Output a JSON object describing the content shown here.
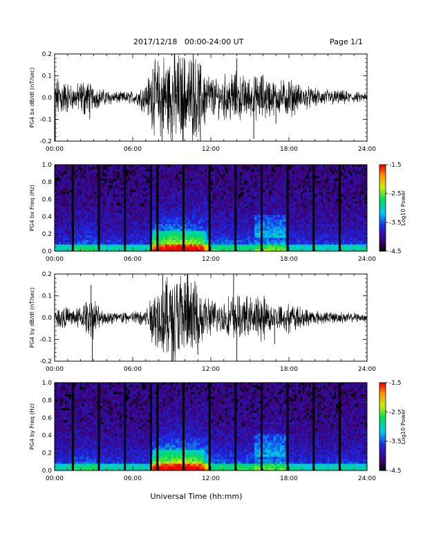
{
  "header": {
    "title": "2017/12/18   00:00-24:00 UT",
    "page": "Page 1/1"
  },
  "xlabel": "Universal Time (hh:mm)",
  "chart_data": [
    {
      "type": "line",
      "series": [
        {
          "name": "PG4 bx dB/dt"
        }
      ],
      "ylabel": "PG4 bx dB/dt (nT/sec)",
      "xlim_hours": [
        0,
        24
      ],
      "ylim": [
        -0.2,
        0.2
      ],
      "xticks": [
        "00:00",
        "06:00",
        "12:00",
        "18:00",
        "24:00"
      ],
      "yticks": [
        "-0.2",
        "-0.1",
        "0.0",
        "0.1",
        "0.2"
      ],
      "activity_envelope": {
        "hours": [
          0,
          0.3,
          1.5,
          2.3,
          2.8,
          3.5,
          5,
          6.2,
          7,
          7.6,
          8.5,
          9.3,
          10,
          10.8,
          11.5,
          12.3,
          13,
          13.7,
          14.3,
          15.2,
          16,
          17,
          18,
          18.7,
          20,
          21.5,
          23,
          24
        ],
        "amplitude": [
          0.06,
          0.1,
          0.05,
          0.09,
          0.06,
          0.04,
          0.025,
          0.03,
          0.07,
          0.15,
          0.2,
          0.2,
          0.2,
          0.18,
          0.14,
          0.08,
          0.1,
          0.12,
          0.1,
          0.09,
          0.11,
          0.07,
          0.09,
          0.06,
          0.04,
          0.035,
          0.025,
          0.02
        ]
      },
      "spikes": [
        {
          "hour": 0.05,
          "value": -0.2
        },
        {
          "hour": 2.7,
          "value": -0.1
        },
        {
          "hour": 7.55,
          "value": 0.13
        },
        {
          "hour": 8.25,
          "value": -0.2
        },
        {
          "hour": 9.2,
          "value": 0.2
        },
        {
          "hour": 9.85,
          "value": -0.2
        },
        {
          "hour": 10.65,
          "value": 0.2
        },
        {
          "hour": 11.2,
          "value": -0.2
        },
        {
          "hour": 14.0,
          "value": 0.18
        },
        {
          "hour": 15.3,
          "value": -0.19
        },
        {
          "hour": 17.0,
          "value": -0.12
        }
      ]
    },
    {
      "type": "heatmap",
      "ylabel": "PG4 bx Freq (Hz)",
      "colorbar_label": "Log10 Power",
      "xlim_hours": [
        0,
        24
      ],
      "ylim": [
        0,
        1
      ],
      "yticks": [
        "0.0",
        "0.2",
        "0.4",
        "0.6",
        "0.8",
        "1.0"
      ],
      "xticks": [
        "00:00",
        "06:00",
        "12:00",
        "18:00",
        "24:00"
      ],
      "color_range": [
        -4.5,
        -1.5
      ],
      "colorbar_ticks": [
        "-1.5",
        "-2.5",
        "-3.5",
        "-4.5"
      ],
      "gap_hours": [
        1.4,
        3.4,
        5.4,
        7.4,
        7.9,
        9.9,
        11.9,
        13.9,
        15.9,
        17.9,
        19.9,
        21.9
      ],
      "notable_features": [
        "broadband enhancement 07:30-11:30",
        "band near 0.2-0.4 Hz around 15:30-17:30"
      ]
    },
    {
      "type": "line",
      "series": [
        {
          "name": "PG4 by dB/dt"
        }
      ],
      "ylabel": "PG4 by dB/dt (nT/sec)",
      "xlim_hours": [
        0,
        24
      ],
      "ylim": [
        -0.2,
        0.2
      ],
      "xticks": [
        "00:00",
        "06:00",
        "12:00",
        "18:00",
        "24:00"
      ],
      "yticks": [
        "-0.2",
        "-0.1",
        "0.0",
        "0.1",
        "0.2"
      ],
      "activity_envelope": {
        "hours": [
          0,
          0.5,
          1.5,
          2.5,
          2.9,
          3.5,
          5,
          6.2,
          7.2,
          7.6,
          8.5,
          9.3,
          10,
          10.8,
          11.5,
          12.3,
          13,
          13.7,
          14.5,
          15.3,
          16,
          17,
          18,
          18.7,
          20,
          21.5,
          23,
          24
        ],
        "amplitude": [
          0.03,
          0.05,
          0.04,
          0.07,
          0.1,
          0.04,
          0.025,
          0.03,
          0.05,
          0.13,
          0.2,
          0.2,
          0.2,
          0.17,
          0.11,
          0.07,
          0.08,
          0.1,
          0.09,
          0.09,
          0.1,
          0.06,
          0.07,
          0.05,
          0.03,
          0.025,
          0.02,
          0.015
        ]
      },
      "spikes": [
        {
          "hour": 2.8,
          "value": 0.15
        },
        {
          "hour": 2.9,
          "value": -0.2
        },
        {
          "hour": 8.3,
          "value": 0.2
        },
        {
          "hour": 9.1,
          "value": -0.2
        },
        {
          "hour": 10.2,
          "value": 0.2
        },
        {
          "hour": 11.0,
          "value": -0.17
        },
        {
          "hour": 13.75,
          "value": 0.2
        },
        {
          "hour": 14.0,
          "value": -0.2
        },
        {
          "hour": 16.9,
          "value": -0.12
        }
      ]
    },
    {
      "type": "heatmap",
      "ylabel": "PG4 by Freq (Hz)",
      "colorbar_label": "Log10 Power",
      "xlim_hours": [
        0,
        24
      ],
      "ylim": [
        0,
        1
      ],
      "yticks": [
        "0.0",
        "0.2",
        "0.4",
        "0.6",
        "0.8",
        "1.0"
      ],
      "xticks": [
        "00:00",
        "06:00",
        "12:00",
        "18:00",
        "24:00"
      ],
      "color_range": [
        -4.5,
        -1.5
      ],
      "colorbar_ticks": [
        "-1.5",
        "-2.5",
        "-3.5",
        "-4.5"
      ],
      "gap_hours": [
        1.4,
        3.4,
        5.4,
        7.4,
        7.9,
        9.9,
        11.9,
        13.9,
        15.9,
        17.9,
        19.9,
        21.9
      ],
      "notable_features": [
        "broadband enhancement 07:30-11:30",
        "band near 0.2-0.4 Hz around 15:30-17:30"
      ]
    }
  ]
}
